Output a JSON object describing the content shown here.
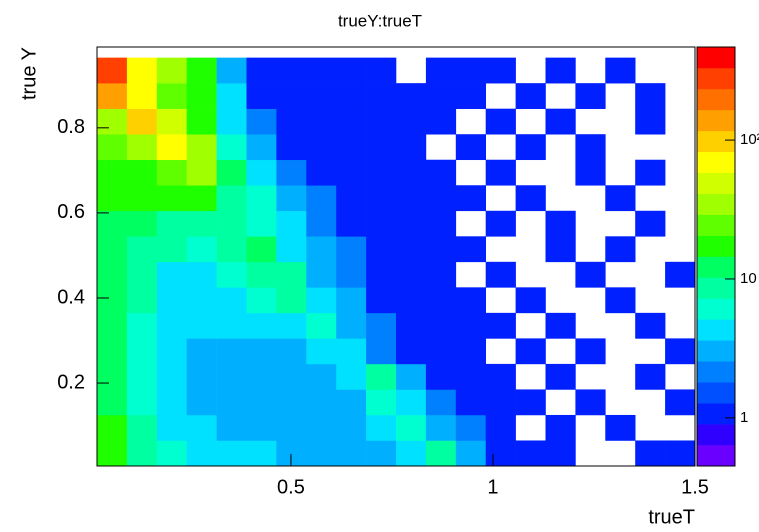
{
  "chart_data": {
    "type": "heatmap",
    "title": "trueY:trueT",
    "x_label": "trueT",
    "y_label": "true Y",
    "xlim": [
      0.02,
      1.5
    ],
    "ylim": [
      0.005,
      0.99
    ],
    "zlim": [
      0.45,
      468
    ],
    "z_log": true,
    "xticks": [
      0.5,
      1,
      1.5
    ],
    "yticks": [
      0.2,
      0.4,
      0.6,
      0.8
    ],
    "zticks": [
      1,
      10,
      {
        "value": 100,
        "label": "10²"
      }
    ],
    "xbins": [
      0.02,
      0.094,
      0.168,
      0.242,
      0.316,
      0.39,
      0.464,
      0.538,
      0.612,
      0.686,
      0.76,
      0.834,
      0.908,
      0.982,
      1.056,
      1.13,
      1.204,
      1.278,
      1.352,
      1.426,
      1.5
    ],
    "ybins": [
      0.005,
      0.065,
      0.125,
      0.185,
      0.245,
      0.305,
      0.365,
      0.425,
      0.485,
      0.545,
      0.605,
      0.665,
      0.725,
      0.785,
      0.845,
      0.905,
      0.965
    ],
    "z": [
      [
        20,
        10,
        6,
        4,
        4,
        4,
        3,
        3,
        3,
        3,
        4,
        8,
        3,
        1,
        1,
        1,
        0,
        0,
        1,
        1
      ],
      [
        15,
        8,
        5,
        4,
        3,
        3,
        3,
        3,
        3,
        4,
        6,
        3,
        2,
        1,
        0,
        1,
        0,
        1,
        0,
        0
      ],
      [
        14,
        7,
        4,
        3,
        3,
        3,
        3,
        3,
        3,
        6,
        4,
        2,
        1,
        1,
        1,
        0,
        1,
        0,
        0,
        1
      ],
      [
        12,
        6,
        4,
        3,
        3,
        3,
        3,
        3,
        5,
        10,
        3,
        1,
        1,
        1,
        0,
        1,
        0,
        0,
        1,
        0
      ],
      [
        12,
        6,
        4,
        3,
        3,
        3,
        3,
        5,
        4,
        2,
        1,
        1,
        1,
        0,
        1,
        0,
        1,
        0,
        0,
        1
      ],
      [
        12,
        6,
        4,
        4,
        4,
        4,
        5,
        6,
        3,
        2,
        1,
        1,
        1,
        1,
        0,
        1,
        0,
        0,
        1,
        0
      ],
      [
        12,
        8,
        5,
        4,
        5,
        6,
        8,
        5,
        3,
        1,
        1,
        1,
        1,
        0,
        1,
        0,
        0,
        1,
        0,
        0
      ],
      [
        12,
        8,
        5,
        5,
        6,
        10,
        8,
        3,
        2,
        1,
        1,
        1,
        0,
        1,
        0,
        0,
        1,
        0,
        0,
        1
      ],
      [
        12,
        10,
        8,
        6,
        8,
        12,
        5,
        3,
        2,
        1,
        1,
        1,
        1,
        0,
        0,
        1,
        0,
        1,
        0,
        0
      ],
      [
        12,
        12,
        10,
        10,
        8,
        6,
        4,
        2,
        1,
        1,
        1,
        1,
        0,
        1,
        0,
        1,
        0,
        0,
        1,
        0
      ],
      [
        15,
        15,
        15,
        15,
        10,
        6,
        3,
        2,
        1,
        1,
        1,
        1,
        1,
        0,
        1,
        0,
        0,
        1,
        0,
        0
      ],
      [
        20,
        20,
        25,
        30,
        12,
        5,
        2,
        1,
        1,
        1,
        1,
        1,
        0,
        1,
        0,
        0,
        1,
        0,
        1,
        0
      ],
      [
        25,
        30,
        60,
        30,
        6,
        3,
        1,
        1,
        1,
        1,
        1,
        0,
        1,
        0,
        1,
        0,
        1,
        0,
        0,
        0
      ],
      [
        40,
        100,
        50,
        15,
        5,
        2,
        1,
        1,
        1,
        1,
        1,
        1,
        0,
        1,
        0,
        1,
        0,
        0,
        1,
        0
      ],
      [
        150,
        80,
        25,
        15,
        5,
        1,
        1,
        1,
        1,
        1,
        1,
        1,
        1,
        0,
        1,
        0,
        1,
        0,
        1,
        0
      ],
      [
        300,
        60,
        30,
        15,
        3,
        1,
        1,
        1,
        1,
        1,
        0,
        1,
        1,
        1,
        0,
        1,
        0,
        1,
        0,
        0
      ]
    ],
    "palette": [
      "#6a00ff",
      "#3000ff",
      "#0020ff",
      "#0050ff",
      "#0080ff",
      "#00b0ff",
      "#00e0ff",
      "#00ffd0",
      "#00ffa0",
      "#00ff60",
      "#20ff00",
      "#60ff00",
      "#a0ff00",
      "#d0ff00",
      "#ffff00",
      "#ffd000",
      "#ffa000",
      "#ff7000",
      "#ff4000",
      "#ff0000"
    ]
  }
}
